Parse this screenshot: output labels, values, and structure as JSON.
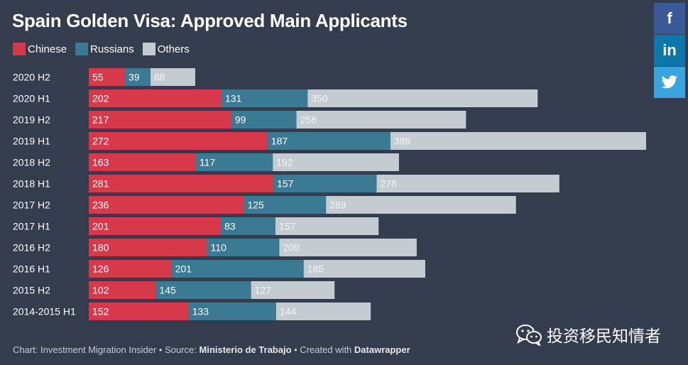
{
  "title": "Spain Golden Visa: Approved Main Applicants",
  "legend": [
    {
      "label": "Chinese",
      "color": "#d7394a"
    },
    {
      "label": "Russians",
      "color": "#3a7a94"
    },
    {
      "label": "Others",
      "color": "#c4ccd1"
    }
  ],
  "chart_data": {
    "type": "bar",
    "orientation": "horizontal",
    "stacked": true,
    "title": "Spain Golden Visa: Approved Main Applicants",
    "categories": [
      "2020 H2",
      "2020 H1",
      "2019 H2",
      "2019 H1",
      "2018 H2",
      "2018 H1",
      "2017 H2",
      "2017 H1",
      "2016 H2",
      "2016 H1",
      "2015 H2",
      "2014-2015 H1"
    ],
    "series": [
      {
        "name": "Chinese",
        "color": "#d7394a",
        "values": [
          55,
          202,
          217,
          272,
          163,
          281,
          236,
          201,
          180,
          126,
          102,
          152
        ]
      },
      {
        "name": "Russians",
        "color": "#3a7a94",
        "values": [
          39,
          131,
          99,
          187,
          117,
          157,
          125,
          83,
          110,
          201,
          145,
          133
        ]
      },
      {
        "name": "Others",
        "color": "#c4ccd1",
        "values": [
          68,
          350,
          258,
          389,
          192,
          278,
          289,
          157,
          209,
          185,
          127,
          144
        ]
      }
    ],
    "xlim": [
      0,
      848
    ],
    "legend_position": "top-left",
    "grid": false
  },
  "footer": {
    "prefix": "Chart: Investment Migration Insider • Source: ",
    "source": "Ministerio de Trabajo",
    "middle": " • Created with ",
    "tool": "Datawrapper"
  },
  "social": {
    "facebook": "f",
    "linkedin": "in"
  },
  "watermark": {
    "text": "投资移民知情者",
    "icon": "wechat-icon"
  }
}
